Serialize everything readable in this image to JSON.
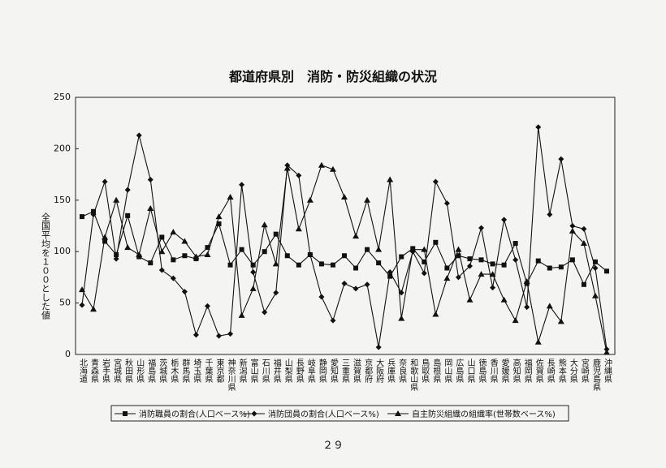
{
  "chart_data": {
    "type": "line",
    "title": "都道府県別　消防・防災組織の状況",
    "y_label": "全国平均を１００とした値",
    "categories": [
      "北海道",
      "青森県",
      "岩手県",
      "宮城県",
      "秋田県",
      "山形県",
      "福島県",
      "茨城県",
      "栃木県",
      "群馬県",
      "埼玉県",
      "千葉県",
      "東京都",
      "神奈川県",
      "新潟県",
      "富山県",
      "石川県",
      "福井県",
      "山梨県",
      "長野県",
      "岐阜県",
      "静岡県",
      "愛知県",
      "三重県",
      "滋賀県",
      "京都府",
      "大阪府",
      "兵庫県",
      "奈良県",
      "和歌山県",
      "鳥取県",
      "島根県",
      "岡山県",
      "広島県",
      "山口県",
      "徳島県",
      "香川県",
      "愛媛県",
      "高知県",
      "福岡県",
      "佐賀県",
      "長崎県",
      "熊本県",
      "大分県",
      "宮崎県",
      "鹿児島県",
      "沖縄県"
    ],
    "series": [
      {
        "name": "消防職員の割合(人口ベース%)",
        "color": "#111111",
        "marker": "square",
        "values": [
          134,
          139,
          110,
          97,
          135,
          95,
          89,
          114,
          92,
          96,
          93,
          104,
          127,
          87,
          102,
          87,
          100,
          117,
          96,
          87,
          97,
          88,
          87,
          96,
          84,
          102,
          89,
          76,
          95,
          103,
          90,
          109,
          84,
          96,
          93,
          92,
          88,
          87,
          108,
          69,
          91,
          84,
          85,
          92,
          68,
          90,
          81
        ]
      },
      {
        "name": "消防団員の割合(人口ベース%)",
        "color": "#111111",
        "marker": "diamond",
        "values": [
          48,
          136,
          168,
          93,
          160,
          213,
          170,
          82,
          74,
          61,
          19,
          47,
          18,
          20,
          165,
          80,
          41,
          60,
          184,
          174,
          97,
          56,
          33,
          69,
          64,
          68,
          7,
          80,
          60,
          100,
          79,
          168,
          147,
          75,
          86,
          123,
          65,
          131,
          92,
          46,
          221,
          136,
          190,
          125,
          122,
          84,
          5
        ]
      },
      {
        "name": "自主防災組織の組織率(世帯数ベース%)",
        "color": "#111111",
        "marker": "triangle",
        "values": [
          63,
          44,
          114,
          150,
          104,
          97,
          142,
          100,
          119,
          110,
          95,
          97,
          134,
          153,
          38,
          64,
          126,
          88,
          181,
          122,
          150,
          184,
          180,
          153,
          115,
          150,
          102,
          170,
          35,
          102,
          102,
          39,
          74,
          102,
          53,
          78,
          78,
          53,
          33,
          71,
          12,
          47,
          32,
          120,
          108,
          57,
          2
        ]
      }
    ],
    "ylim": [
      0,
      250
    ],
    "yticks": [
      0,
      50,
      100,
      150,
      200,
      250
    ],
    "grid": false
  },
  "page_number": "２９"
}
